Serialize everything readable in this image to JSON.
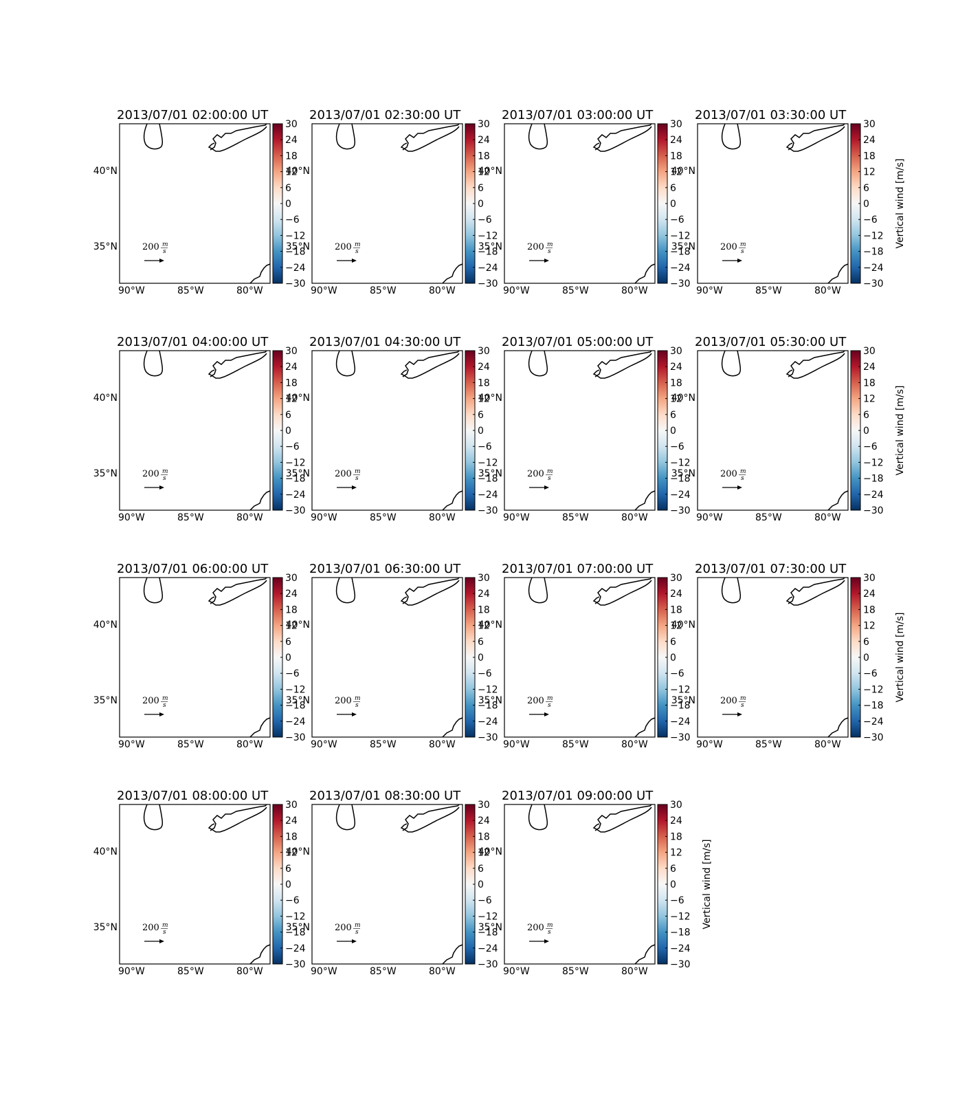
{
  "figure": {
    "rows": 4,
    "cols": 4
  },
  "panels": [
    {
      "title": "2013/07/01 02:00:00 UT"
    },
    {
      "title": "2013/07/01 02:30:00 UT"
    },
    {
      "title": "2013/07/01 03:00:00 UT"
    },
    {
      "title": "2013/07/01 03:30:00 UT"
    },
    {
      "title": "2013/07/01 04:00:00 UT"
    },
    {
      "title": "2013/07/01 04:30:00 UT"
    },
    {
      "title": "2013/07/01 05:00:00 UT"
    },
    {
      "title": "2013/07/01 05:30:00 UT"
    },
    {
      "title": "2013/07/01 06:00:00 UT"
    },
    {
      "title": "2013/07/01 06:30:00 UT"
    },
    {
      "title": "2013/07/01 07:00:00 UT"
    },
    {
      "title": "2013/07/01 07:30:00 UT"
    },
    {
      "title": "2013/07/01 08:00:00 UT"
    },
    {
      "title": "2013/07/01 08:30:00 UT"
    },
    {
      "title": "2013/07/01 09:00:00 UT"
    }
  ],
  "map": {
    "lon_ticks": [
      "90°W",
      "85°W",
      "80°W"
    ],
    "lat_ticks": [
      "40°N",
      "35°N"
    ]
  },
  "colorbar": {
    "label": "Vertical wind [m/s]",
    "ticks": [
      "30",
      "24",
      "18",
      "12",
      "6",
      "0",
      "−6",
      "−12",
      "−18",
      "−24",
      "−30"
    ],
    "colors": [
      "#67001f",
      "#b2182b",
      "#d6604d",
      "#f4a582",
      "#fddbc7",
      "#f7f7f7",
      "#d1e5f0",
      "#92c5de",
      "#4393c3",
      "#2166ac",
      "#053061"
    ]
  },
  "quiver_key": {
    "value": "200",
    "unit_num": "m",
    "unit_den": "s"
  }
}
